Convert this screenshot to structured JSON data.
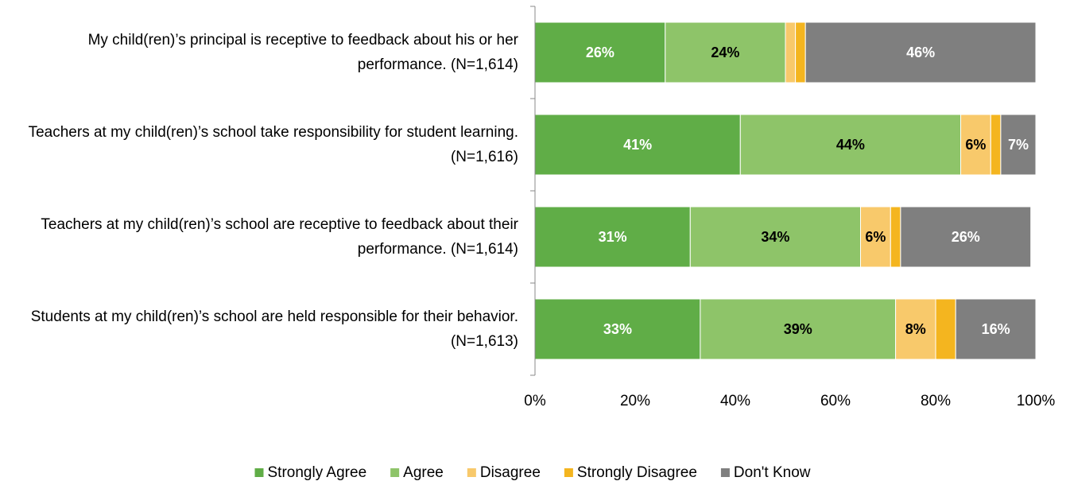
{
  "chart_data": {
    "type": "stacked-bar-horizontal",
    "categories": [
      "My child(ren)’s principal is receptive to feedback about his or her performance. (N=1,614)",
      "Teachers at my child(ren)’s school take responsibility for student learning. (N=1,616)",
      "Teachers at my child(ren)’s school are receptive to feedback about their performance. (N=1,614)",
      "Students at my child(ren)’s school are held responsible for their behavior. (N=1,613)"
    ],
    "series": [
      {
        "name": "Strongly Agree",
        "color": "#60ad47",
        "values": [
          26,
          41,
          31,
          33
        ],
        "value_labels": [
          "26%",
          "41%",
          "31%",
          "33%"
        ]
      },
      {
        "name": "Agree",
        "color": "#8ec469",
        "values": [
          24,
          44,
          34,
          39
        ],
        "value_labels": [
          "24%",
          "44%",
          "34%",
          "39%"
        ]
      },
      {
        "name": "Disagree",
        "color": "#f8c96b",
        "values": [
          2,
          6,
          6,
          8
        ],
        "value_labels": [
          null,
          "6%",
          "6%",
          "8%"
        ]
      },
      {
        "name": "Strongly Disagree",
        "color": "#f4b51f",
        "values": [
          2,
          2,
          2,
          4
        ],
        "value_labels": [
          null,
          null,
          null,
          null
        ]
      },
      {
        "name": "Don't Know",
        "color": "#7f7f7f",
        "values": [
          46,
          7,
          26,
          16
        ],
        "value_labels": [
          "46%",
          "7%",
          "26%",
          "16%"
        ]
      }
    ],
    "xlim": [
      0,
      100
    ],
    "xticks": [
      {
        "value": 0,
        "label": "0%"
      },
      {
        "value": 20,
        "label": "20%"
      },
      {
        "value": 40,
        "label": "40%"
      },
      {
        "value": 60,
        "label": "60%"
      },
      {
        "value": 80,
        "label": "80%"
      },
      {
        "value": 100,
        "label": "100%"
      }
    ],
    "legend": "bottom"
  }
}
